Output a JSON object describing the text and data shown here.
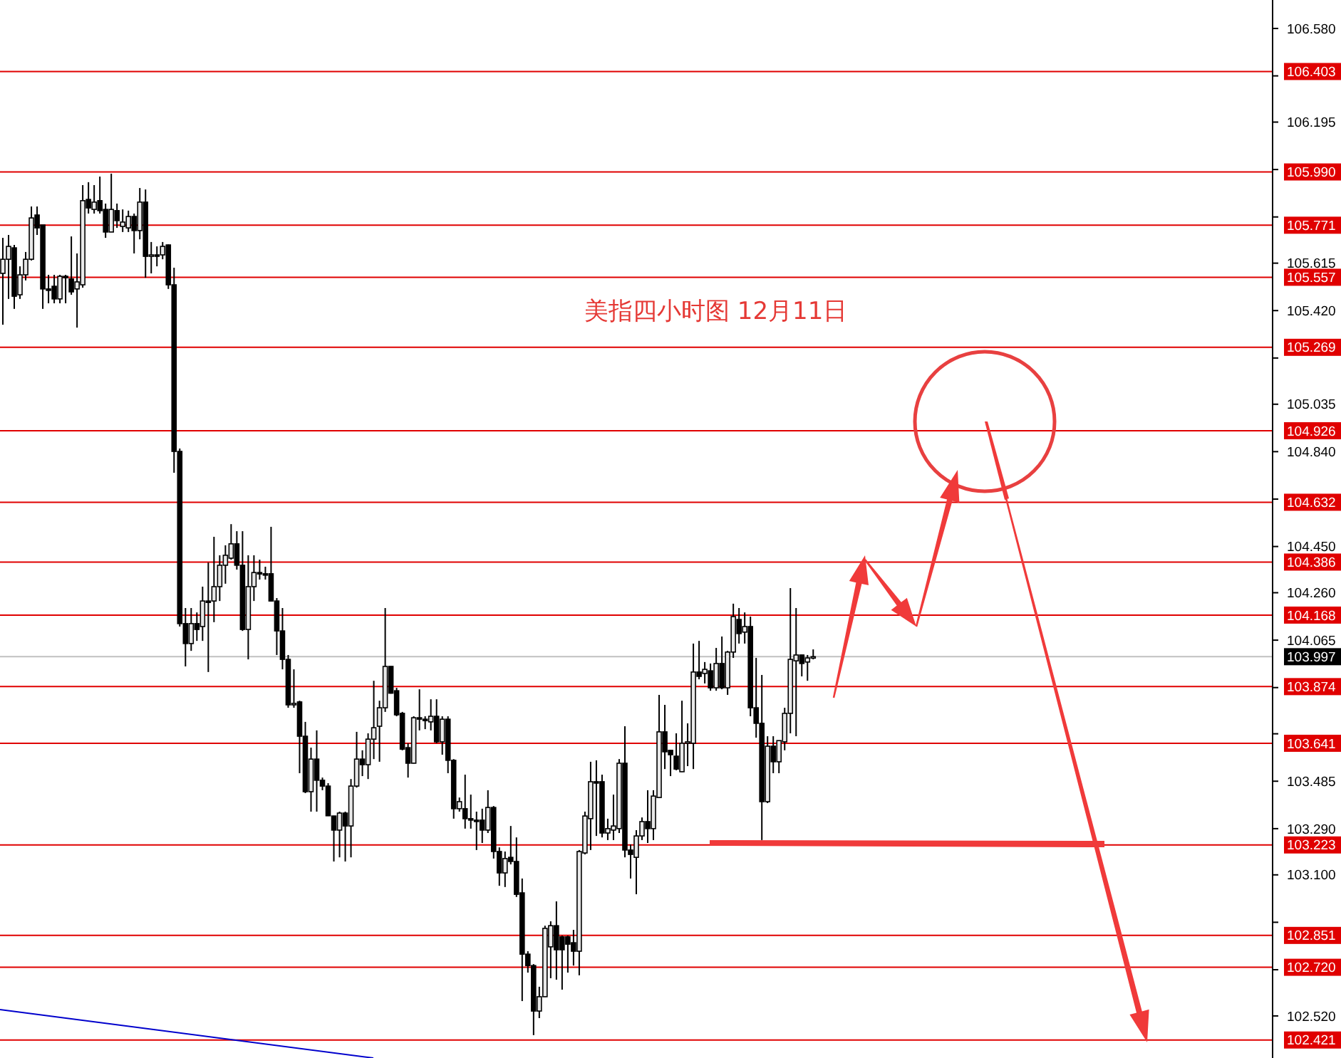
{
  "chart_data": {
    "type": "candlestick",
    "title": "美指四小时图  12月11日",
    "tick_labels": "y",
    "ylim": [
      102.347,
      106.697
    ],
    "yticks": [
      {
        "value": 106.58,
        "label": "106.580"
      },
      {
        "value": 106.385,
        "label": null
      },
      {
        "value": 106.195,
        "label": "106.195"
      },
      {
        "value": 106.0,
        "label": null
      },
      {
        "value": 105.805,
        "label": null
      },
      {
        "value": 105.615,
        "label": "105.615"
      },
      {
        "value": 105.42,
        "label": "105.420"
      },
      {
        "value": 105.225,
        "label": null
      },
      {
        "value": 105.035,
        "label": "105.035"
      },
      {
        "value": 104.84,
        "label": "104.840"
      },
      {
        "value": 104.645,
        "label": null
      },
      {
        "value": 104.45,
        "label": "104.450"
      },
      {
        "value": 104.26,
        "label": "104.260"
      },
      {
        "value": 104.065,
        "label": "104.065"
      },
      {
        "value": 103.87,
        "label": null
      },
      {
        "value": 103.68,
        "label": null
      },
      {
        "value": 103.485,
        "label": "103.485"
      },
      {
        "value": 103.29,
        "label": "103.290"
      },
      {
        "value": 103.1,
        "label": "103.100"
      },
      {
        "value": 102.905,
        "label": null
      },
      {
        "value": 102.71,
        "label": null
      },
      {
        "value": 102.52,
        "label": "102.520"
      }
    ],
    "ref_lines": [
      {
        "axis": "y",
        "value": 106.403,
        "label": "106.403",
        "color": "#e00000"
      },
      {
        "axis": "y",
        "value": 105.99,
        "label": "105.990",
        "color": "#e00000"
      },
      {
        "axis": "y",
        "value": 105.771,
        "label": "105.771",
        "color": "#e00000"
      },
      {
        "axis": "y",
        "value": 105.557,
        "label": "105.557",
        "color": "#e00000"
      },
      {
        "axis": "y",
        "value": 105.269,
        "label": "105.269",
        "color": "#e00000"
      },
      {
        "axis": "y",
        "value": 104.926,
        "label": "104.926",
        "color": "#e00000"
      },
      {
        "axis": "y",
        "value": 104.632,
        "label": "104.632",
        "color": "#e00000"
      },
      {
        "axis": "y",
        "value": 104.386,
        "label": "104.386",
        "color": "#e00000"
      },
      {
        "axis": "y",
        "value": 104.168,
        "label": "104.168",
        "color": "#e00000"
      },
      {
        "axis": "y",
        "value": 103.997,
        "label": "103.997",
        "color": "#c0c0c0"
      },
      {
        "axis": "y",
        "value": 103.874,
        "label": "103.874",
        "color": "#e00000"
      },
      {
        "axis": "y",
        "value": 103.641,
        "label": "103.641",
        "color": "#e00000"
      },
      {
        "axis": "y",
        "value": 103.223,
        "label": "103.223",
        "color": "#e00000"
      },
      {
        "axis": "y",
        "value": 102.851,
        "label": "102.851",
        "color": "#e00000"
      },
      {
        "axis": "y",
        "value": 102.72,
        "label": "102.720",
        "color": "#e00000"
      },
      {
        "axis": "y",
        "value": 102.421,
        "label": "102.421",
        "color": "#e00000"
      }
    ],
    "categories": [
      null,
      null,
      null,
      null,
      null,
      null,
      null,
      null,
      null,
      null,
      null,
      null,
      null,
      null,
      null,
      null,
      null,
      null,
      null,
      null,
      null,
      null,
      null,
      null,
      null,
      null,
      null,
      null,
      null,
      null,
      null,
      null,
      null,
      null,
      null,
      null,
      null,
      null,
      null,
      null,
      null,
      null,
      null,
      null,
      null,
      null,
      null,
      null,
      null,
      null,
      null,
      null,
      null,
      null,
      null,
      null,
      null,
      null,
      null,
      null,
      null,
      null,
      null,
      null,
      null,
      null,
      null,
      null,
      null,
      null,
      null,
      null,
      null,
      null,
      null,
      null,
      null,
      null,
      null,
      null,
      null,
      null,
      null,
      null,
      null,
      null,
      null,
      null,
      null,
      null,
      null,
      null,
      null,
      null,
      null,
      null,
      null,
      null,
      null,
      null,
      null,
      null,
      null,
      null,
      null,
      null,
      null,
      null,
      null,
      null,
      null,
      null,
      null,
      null,
      null,
      null,
      null,
      null,
      null,
      null,
      null,
      null,
      null,
      null,
      null,
      null,
      null,
      null,
      null,
      null,
      null,
      null,
      null,
      null,
      null,
      null,
      null,
      null,
      null,
      null,
      null,
      null,
      null,
      null,
      null,
      null,
      null,
      null,
      null,
      null,
      null,
      null,
      null,
      null,
      null,
      null,
      null,
      null,
      null,
      null,
      null,
      null,
      null,
      null,
      null,
      null,
      null,
      null,
      null,
      null,
      null,
      null,
      null,
      null,
      null,
      null,
      null,
      null,
      null,
      null,
      null,
      null,
      null,
      null,
      null,
      null,
      null,
      null,
      null,
      null,
      null,
      null,
      null,
      null,
      null,
      null,
      null,
      null,
      null,
      null,
      null,
      null,
      null,
      null,
      null,
      null,
      null,
      null,
      null,
      null,
      null,
      null,
      null,
      null,
      null,
      null,
      null,
      null,
      null,
      null,
      null,
      null,
      null
    ],
    "ohlc": [
      [
        105.573,
        105.719,
        105.362,
        105.631
      ],
      [
        105.631,
        105.731,
        105.468,
        105.684
      ],
      [
        105.678,
        105.69,
        105.427,
        105.479
      ],
      [
        105.485,
        105.602,
        105.468,
        105.567
      ],
      [
        105.567,
        105.661,
        105.544,
        105.631
      ],
      [
        105.631,
        105.848,
        105.626,
        105.801
      ],
      [
        105.813,
        105.848,
        105.731,
        105.76
      ],
      [
        105.772,
        105.772,
        105.427,
        105.509
      ],
      [
        105.509,
        105.567,
        105.45,
        105.503
      ],
      [
        105.52,
        105.567,
        105.45,
        105.468
      ],
      [
        105.468,
        105.567,
        105.45,
        105.561
      ],
      [
        105.561,
        105.567,
        105.45,
        105.56
      ],
      [
        105.55,
        105.725,
        105.485,
        105.497
      ],
      [
        105.509,
        105.655,
        105.35,
        105.538
      ],
      [
        105.526,
        105.936,
        105.514,
        105.872
      ],
      [
        105.877,
        105.948,
        105.819,
        105.842
      ],
      [
        105.836,
        105.936,
        105.819,
        105.866
      ],
      [
        105.872,
        105.971,
        105.819,
        105.831
      ],
      [
        105.836,
        105.86,
        105.719,
        105.743
      ],
      [
        105.743,
        105.983,
        105.743,
        105.836
      ],
      [
        105.831,
        105.86,
        105.76,
        105.79
      ],
      [
        105.766,
        105.836,
        105.743,
        105.784
      ],
      [
        105.76,
        105.831,
        105.743,
        105.807
      ],
      [
        105.807,
        105.819,
        105.655,
        105.749
      ],
      [
        105.749,
        105.924,
        105.713,
        105.866
      ],
      [
        105.866,
        105.918,
        105.555,
        105.643
      ],
      [
        105.643,
        105.702,
        105.573,
        105.649
      ],
      [
        105.649,
        105.684,
        105.602,
        105.648
      ],
      [
        105.649,
        105.702,
        105.631,
        105.684
      ],
      [
        105.69,
        105.692,
        105.509,
        105.526
      ],
      [
        105.526,
        105.596,
        104.753,
        104.841
      ],
      [
        104.841,
        104.853,
        104.121,
        104.133
      ],
      [
        104.133,
        104.197,
        103.957,
        104.051
      ],
      [
        104.051,
        104.197,
        104.021,
        104.133
      ],
      [
        104.133,
        104.179,
        104.062,
        104.109
      ],
      [
        104.121,
        104.285,
        104.062,
        104.226
      ],
      [
        104.226,
        104.384,
        103.934,
        104.22
      ],
      [
        104.226,
        104.49,
        104.139,
        104.285
      ],
      [
        104.285,
        104.414,
        104.226,
        104.373
      ],
      [
        104.373,
        104.455,
        104.297,
        104.414
      ],
      [
        104.402,
        104.542,
        104.396,
        104.461
      ],
      [
        104.461,
        104.513,
        104.355,
        104.373
      ],
      [
        104.373,
        104.513,
        104.103,
        104.109
      ],
      [
        104.109,
        104.414,
        103.986,
        104.285
      ],
      [
        104.285,
        104.414,
        104.226,
        104.343
      ],
      [
        104.343,
        104.396,
        104.314,
        104.342
      ],
      [
        104.338,
        104.367,
        104.314,
        104.337
      ],
      [
        104.338,
        104.531,
        104.224,
        104.226
      ],
      [
        104.226,
        104.238,
        104.004,
        104.103
      ],
      [
        104.103,
        104.197,
        103.945,
        103.986
      ],
      [
        103.986,
        104.004,
        103.787,
        103.799
      ],
      [
        103.799,
        103.945,
        103.787,
        103.805
      ],
      [
        103.811,
        103.816,
        103.518,
        103.67
      ],
      [
        103.67,
        103.729,
        103.436,
        103.442
      ],
      [
        103.442,
        103.623,
        103.36,
        103.576
      ],
      [
        103.576,
        103.694,
        103.36,
        103.489
      ],
      [
        103.489,
        103.5,
        103.448,
        103.465
      ],
      [
        103.465,
        103.477,
        103.342,
        103.343
      ],
      [
        103.342,
        103.343,
        103.155,
        103.284
      ],
      [
        103.284,
        103.36,
        103.172,
        103.354
      ],
      [
        103.354,
        103.36,
        103.155,
        103.301
      ],
      [
        103.301,
        103.494,
        103.172,
        103.465
      ],
      [
        103.465,
        103.688,
        103.459,
        103.576
      ],
      [
        103.576,
        103.612,
        103.506,
        103.553
      ],
      [
        103.553,
        103.682,
        103.494,
        103.658
      ],
      [
        103.658,
        103.898,
        103.576,
        103.705
      ],
      [
        103.711,
        103.816,
        103.565,
        103.787
      ],
      [
        103.787,
        104.197,
        103.77,
        103.957
      ],
      [
        103.957,
        103.958,
        103.845,
        103.847
      ],
      [
        103.857,
        103.869,
        103.752,
        103.758
      ],
      [
        103.764,
        103.77,
        103.612,
        103.617
      ],
      [
        103.623,
        103.641,
        103.5,
        103.559
      ],
      [
        103.559,
        103.752,
        103.558,
        103.746
      ],
      [
        103.746,
        103.863,
        103.694,
        103.745
      ],
      [
        103.74,
        103.752,
        103.699,
        103.734
      ],
      [
        103.729,
        103.822,
        103.694,
        103.752
      ],
      [
        103.752,
        103.822,
        103.641,
        103.647
      ],
      [
        103.647,
        103.752,
        103.594,
        103.74
      ],
      [
        103.74,
        103.752,
        103.518,
        103.571
      ],
      [
        103.571,
        103.576,
        103.331,
        103.372
      ],
      [
        103.372,
        103.418,
        103.36,
        103.401
      ],
      [
        103.372,
        103.512,
        103.29,
        103.331
      ],
      [
        103.331,
        103.43,
        103.29,
        103.325
      ],
      [
        103.325,
        103.36,
        103.202,
        103.324
      ],
      [
        103.325,
        103.372,
        103.231,
        103.284
      ],
      [
        103.284,
        103.448,
        103.272,
        103.377
      ],
      [
        103.377,
        103.383,
        103.167,
        103.196
      ],
      [
        103.196,
        103.213,
        103.055,
        103.108
      ],
      [
        103.108,
        103.196,
        103.05,
        103.167
      ],
      [
        103.172,
        103.301,
        103.143,
        103.155
      ],
      [
        103.155,
        103.254,
        103.009,
        103.02
      ],
      [
        103.026,
        103.085,
        102.581,
        102.774
      ],
      [
        102.774,
        102.786,
        102.698,
        102.727
      ],
      [
        102.727,
        102.733,
        102.441,
        102.54
      ],
      [
        102.54,
        102.64,
        102.511,
        102.599
      ],
      [
        102.599,
        102.891,
        102.598,
        102.88
      ],
      [
        102.804,
        102.909,
        102.675,
        102.891
      ],
      [
        102.891,
        102.991,
        102.669,
        102.792
      ],
      [
        102.845,
        102.85,
        102.628,
        102.792
      ],
      [
        102.845,
        102.85,
        102.698,
        102.815
      ],
      [
        102.821,
        102.874,
        102.727,
        102.786
      ],
      [
        102.786,
        103.202,
        102.687,
        103.196
      ],
      [
        103.19,
        103.36,
        103.184,
        103.342
      ],
      [
        103.331,
        103.565,
        103.202,
        103.483
      ],
      [
        103.483,
        103.571,
        103.26,
        103.482
      ],
      [
        103.483,
        103.512,
        103.254,
        103.272
      ],
      [
        103.272,
        103.331,
        103.243,
        103.29
      ],
      [
        103.284,
        103.43,
        103.243,
        103.301
      ],
      [
        103.29,
        103.576,
        103.272,
        103.559
      ],
      [
        103.559,
        103.711,
        103.172,
        103.202
      ],
      [
        103.202,
        103.225,
        103.085,
        103.184
      ],
      [
        103.172,
        103.284,
        103.02,
        103.26
      ],
      [
        103.26,
        103.336,
        103.243,
        103.319
      ],
      [
        103.319,
        103.448,
        103.231,
        103.29
      ],
      [
        103.29,
        103.448,
        103.243,
        103.424
      ],
      [
        103.418,
        103.84,
        103.417,
        103.688
      ],
      [
        103.688,
        103.799,
        103.535,
        103.606
      ],
      [
        103.612,
        103.613,
        103.506,
        103.594
      ],
      [
        103.588,
        103.682,
        103.53,
        103.535
      ],
      [
        103.524,
        103.816,
        103.523,
        103.641
      ],
      [
        103.641,
        103.723,
        103.547,
        103.647
      ],
      [
        103.641,
        104.051,
        103.535,
        103.934
      ],
      [
        103.934,
        104.062,
        103.904,
        103.916
      ],
      [
        103.928,
        103.975,
        103.887,
        103.945
      ],
      [
        103.939,
        103.969,
        103.857,
        103.869
      ],
      [
        103.869,
        104.033,
        103.857,
        103.969
      ],
      [
        103.969,
        104.08,
        103.863,
        103.869
      ],
      [
        103.869,
        104.021,
        103.84,
        104.016
      ],
      [
        104.016,
        104.215,
        103.992,
        104.162
      ],
      [
        104.15,
        104.197,
        104.051,
        104.092
      ],
      [
        104.098,
        104.179,
        104.051,
        104.121
      ],
      [
        104.121,
        104.162,
        103.752,
        103.787
      ],
      [
        103.787,
        103.992,
        103.664,
        103.723
      ],
      [
        103.723,
        103.922,
        103.243,
        103.401
      ],
      [
        103.401,
        103.67,
        103.395,
        103.629
      ],
      [
        103.629,
        103.67,
        103.518,
        103.565
      ],
      [
        103.565,
        103.652,
        103.518,
        103.652
      ],
      [
        103.647,
        103.787,
        103.612,
        103.764
      ],
      [
        103.764,
        104.279,
        103.682,
        103.986
      ],
      [
        103.98,
        104.197,
        103.67,
        104.004
      ],
      [
        104.004,
        104.005,
        103.916,
        103.969
      ],
      [
        103.975,
        104.004,
        103.898,
        103.992
      ],
      [
        103.997,
        104.027,
        103.986,
        103.997
      ],
      null,
      null,
      null,
      null,
      null,
      null,
      null,
      null,
      null,
      null,
      null,
      null,
      null,
      null,
      null,
      null,
      null,
      null,
      null,
      null,
      null,
      null,
      null,
      null,
      null,
      null,
      null,
      null,
      null,
      null,
      null,
      null,
      null,
      null,
      null,
      null,
      null,
      null,
      null,
      null,
      null,
      null,
      null,
      null,
      null,
      null,
      null,
      null,
      null,
      null,
      null,
      null,
      null,
      null,
      null,
      null,
      null,
      null,
      null,
      null,
      null,
      null,
      null,
      null,
      null,
      null,
      null,
      null,
      null,
      null,
      null,
      null,
      null,
      null,
      null,
      null,
      null,
      null,
      null,
      null
    ]
  }
}
